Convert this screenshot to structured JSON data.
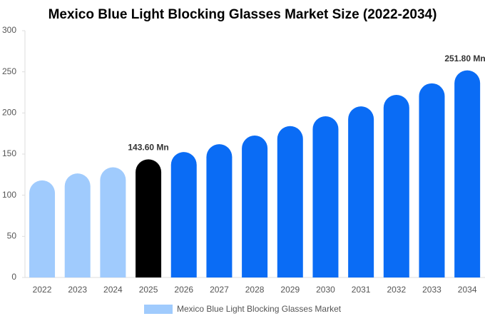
{
  "chart_data": {
    "type": "bar",
    "title": "Mexico Blue Light Blocking Glasses Market Size (2022-2034)",
    "categories": [
      "2022",
      "2023",
      "2024",
      "2025",
      "2026",
      "2027",
      "2028",
      "2029",
      "2030",
      "2031",
      "2032",
      "2033",
      "2034"
    ],
    "series": [
      {
        "name": "Mexico Blue Light Blocking Glasses Market",
        "color": "#a0cbfd",
        "values": [
          118,
          126.5,
          134,
          143.6,
          152.5,
          162,
          172.5,
          184,
          196,
          208,
          222,
          236,
          251.8
        ],
        "value_labels": [
          null,
          null,
          null,
          "143.60 Mn",
          null,
          null,
          null,
          null,
          null,
          null,
          null,
          null,
          "251.80 Mn"
        ],
        "colors": [
          "#a0cbfd",
          "#a0cbfd",
          "#a0cbfd",
          "#000000",
          "#0a6cf5",
          "#0a6cf5",
          "#0a6cf5",
          "#0a6cf5",
          "#0a6cf5",
          "#0a6cf5",
          "#0a6cf5",
          "#0a6cf5",
          "#0a6cf5"
        ]
      }
    ],
    "ylim": [
      0,
      300
    ],
    "yticks": [
      0,
      50,
      100,
      150,
      200,
      250,
      300
    ],
    "grid": false
  }
}
